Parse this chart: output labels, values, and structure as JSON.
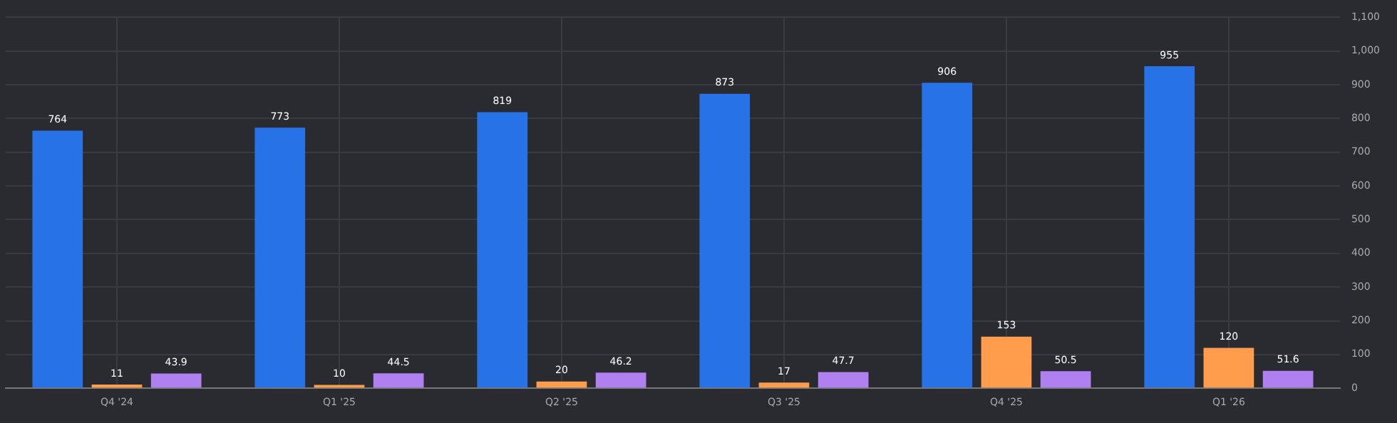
{
  "chart_data": {
    "type": "bar",
    "categories": [
      "Q4 '24",
      "Q1 '25",
      "Q2 '25",
      "Q3 '25",
      "Q4 '25",
      "Q1 '26"
    ],
    "series": [
      {
        "color": "#2872e8",
        "values": [
          764,
          773,
          819,
          873,
          906,
          955
        ]
      },
      {
        "color": "#ff9d4d",
        "values": [
          11,
          10,
          20,
          17,
          153,
          120
        ]
      },
      {
        "color": "#b07ff0",
        "values": [
          43.9,
          44.5,
          46.2,
          47.7,
          50.5,
          51.6
        ]
      }
    ],
    "ylim": [
      0,
      1100
    ],
    "yticks": [
      0,
      100,
      200,
      300,
      400,
      500,
      600,
      700,
      800,
      900,
      {
        "value": 1000,
        "label": "1,000"
      },
      {
        "value": 1100,
        "label": "1,100"
      }
    ],
    "grid": true,
    "data_labels": true
  }
}
